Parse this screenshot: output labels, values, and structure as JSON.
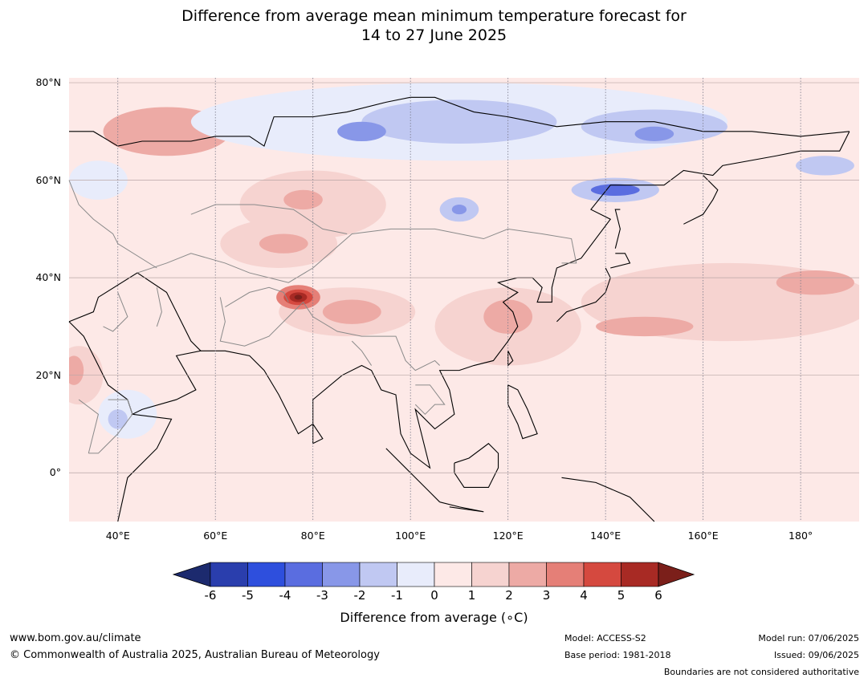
{
  "title": {
    "line1": "Difference from average mean minimum temperature forecast for",
    "line2": "14 to 27 June 2025"
  },
  "map": {
    "region": "Asia",
    "projection": "equirectangular",
    "lon_range": [
      30,
      192
    ],
    "lat_range": [
      -10,
      81
    ],
    "lat_labels": [
      {
        "lat": 80,
        "text": "80°N"
      },
      {
        "lat": 60,
        "text": "60°N"
      },
      {
        "lat": 40,
        "text": "40°N"
      },
      {
        "lat": 20,
        "text": "20°N"
      },
      {
        "lat": 0,
        "text": "0°"
      }
    ],
    "lon_labels": [
      {
        "lon": 40,
        "text": "40°E"
      },
      {
        "lon": 60,
        "text": "60°E"
      },
      {
        "lon": 80,
        "text": "80°E"
      },
      {
        "lon": 100,
        "text": "100°E"
      },
      {
        "lon": 120,
        "text": "120°E"
      },
      {
        "lon": 140,
        "text": "140°E"
      },
      {
        "lon": 160,
        "text": "160°E"
      },
      {
        "lon": 180,
        "text": "180°"
      }
    ],
    "background_color": "#fde9e7",
    "anomaly_regions": [
      {
        "name": "nw-russia-warm",
        "lon": 51,
        "lat": 69.5,
        "rlon": 8,
        "rlat": 2.5,
        "color": "#e57f77"
      },
      {
        "name": "nw-russia-warm-halo",
        "lon": 50,
        "lat": 70,
        "rlon": 13,
        "rlat": 5,
        "color": "#edaaa5"
      },
      {
        "name": "central-asia-warm",
        "lon": 80,
        "lat": 55,
        "rlon": 15,
        "rlat": 7,
        "color": "#f6d3d0"
      },
      {
        "name": "kazakhstan-warm",
        "lon": 73,
        "lat": 47,
        "rlon": 12,
        "rlat": 5,
        "color": "#f6d3d0"
      },
      {
        "name": "kazakhstan-warm-core",
        "lon": 74,
        "lat": 47,
        "rlon": 5,
        "rlat": 2,
        "color": "#edaaa5"
      },
      {
        "name": "altai-warm",
        "lon": 78,
        "lat": 56,
        "rlon": 4,
        "rlat": 2,
        "color": "#edaaa5"
      },
      {
        "name": "tibet-warm",
        "lon": 87,
        "lat": 33,
        "rlon": 14,
        "rlat": 5,
        "color": "#f6d3d0"
      },
      {
        "name": "tibet-warm-core",
        "lon": 88,
        "lat": 33,
        "rlon": 6,
        "rlat": 2.5,
        "color": "#edaaa5"
      },
      {
        "name": "karakoram-warm-3",
        "lon": 77,
        "lat": 36,
        "rlon": 4.5,
        "rlat": 2.5,
        "color": "#e57f77"
      },
      {
        "name": "karakoram-warm-4",
        "lon": 77,
        "lat": 36,
        "rlon": 3,
        "rlat": 1.6,
        "color": "#d5493f"
      },
      {
        "name": "karakoram-warm-5",
        "lon": 77,
        "lat": 36,
        "rlon": 1.8,
        "rlat": 1,
        "color": "#a82a24"
      },
      {
        "name": "karakoram-warm-6",
        "lon": 77,
        "lat": 36,
        "rlon": 0.8,
        "rlat": 0.5,
        "color": "#7b1f1a"
      },
      {
        "name": "east-china-warm",
        "lon": 120,
        "lat": 30,
        "rlon": 15,
        "rlat": 8,
        "color": "#f6d3d0"
      },
      {
        "name": "east-china-warm-core",
        "lon": 120,
        "lat": 32,
        "rlon": 5,
        "rlat": 3.5,
        "color": "#edaaa5"
      },
      {
        "name": "pacific-warm-band",
        "lon": 165,
        "lat": 35,
        "rlon": 30,
        "rlat": 8,
        "color": "#f6d3d0"
      },
      {
        "name": "pacific-warm-core-east",
        "lon": 183,
        "lat": 39,
        "rlon": 8,
        "rlat": 2.5,
        "color": "#edaaa5"
      },
      {
        "name": "pacific-warm-core-west",
        "lon": 148,
        "lat": 30,
        "rlon": 10,
        "rlat": 2,
        "color": "#edaaa5"
      },
      {
        "name": "arabia-warm",
        "lon": 32,
        "lat": 20,
        "rlon": 5,
        "rlat": 6,
        "color": "#f6d3d0"
      },
      {
        "name": "arabia-warm-core",
        "lon": 31,
        "lat": 21,
        "rlon": 2,
        "rlat": 3,
        "color": "#edaaa5"
      },
      {
        "name": "arctic-cool-band",
        "lon": 110,
        "lat": 72,
        "rlon": 55,
        "rlat": 8,
        "color": "#e8ecfb"
      },
      {
        "name": "siberia-cool",
        "lon": 110,
        "lat": 72,
        "rlon": 20,
        "rlat": 4.5,
        "color": "#c0c8f2"
      },
      {
        "name": "taimyr-cool",
        "lon": 90,
        "lat": 70,
        "rlon": 5,
        "rlat": 2,
        "color": "#8897e8"
      },
      {
        "name": "east-siberia-cool",
        "lon": 150,
        "lat": 71,
        "rlon": 15,
        "rlat": 3.5,
        "color": "#c0c8f2"
      },
      {
        "name": "east-siberia-cool-core",
        "lon": 150,
        "lat": 69.5,
        "rlon": 4,
        "rlat": 1.5,
        "color": "#8897e8"
      },
      {
        "name": "okhotsk-cool",
        "lon": 142,
        "lat": 58,
        "rlon": 9,
        "rlat": 2.5,
        "color": "#c0c8f2"
      },
      {
        "name": "okhotsk-cool-core",
        "lon": 142,
        "lat": 58,
        "rlon": 5,
        "rlat": 1.2,
        "color": "#5a6de0"
      },
      {
        "name": "baikal-cool",
        "lon": 110,
        "lat": 54,
        "rlon": 4,
        "rlat": 2.5,
        "color": "#c0c8f2"
      },
      {
        "name": "baikal-cool-core",
        "lon": 110,
        "lat": 54,
        "rlon": 1.5,
        "rlat": 1,
        "color": "#8897e8"
      },
      {
        "name": "europe-cool",
        "lon": 36,
        "lat": 60,
        "rlon": 6,
        "rlat": 4,
        "color": "#e8ecfb"
      },
      {
        "name": "horn-africa-cool",
        "lon": 42,
        "lat": 12,
        "rlon": 6,
        "rlat": 5,
        "color": "#e8ecfb"
      },
      {
        "name": "ethiopia-cool",
        "lon": 40,
        "lat": 11,
        "rlon": 2,
        "rlat": 2,
        "color": "#c0c8f2"
      },
      {
        "name": "bering-cool",
        "lon": 185,
        "lat": 63,
        "rlon": 6,
        "rlat": 2,
        "color": "#c0c8f2"
      }
    ]
  },
  "colorbar": {
    "label": "Difference from average (°C)",
    "label_prefix": "Difference from average (",
    "label_unit": "∘C",
    "label_suffix": ")",
    "ticks": [
      "-6",
      "-5",
      "-4",
      "-3",
      "-2",
      "-1",
      "0",
      "1",
      "2",
      "3",
      "4",
      "5",
      "6"
    ],
    "colors": [
      "#2a3ead",
      "#2e4fdd",
      "#5a6de0",
      "#8897e8",
      "#c0c8f2",
      "#e8ecfb",
      "#fde9e7",
      "#f6d3d0",
      "#edaaa5",
      "#e57f77",
      "#d5493f",
      "#a82a24"
    ],
    "under_color": "#1c2a6e",
    "over_color": "#7b1f1a"
  },
  "footer": {
    "url": "www.bom.gov.au/climate",
    "copyright": "© Commonwealth of Australia 2025, Australian Bureau of Meteorology",
    "model": "Model: ACCESS-S2",
    "base_period": "Base period: 1981-2018",
    "model_run": "Model run: 07/06/2025",
    "issued": "Issued: 09/06/2025",
    "disclaimer": "Boundaries are not considered authoritative"
  }
}
